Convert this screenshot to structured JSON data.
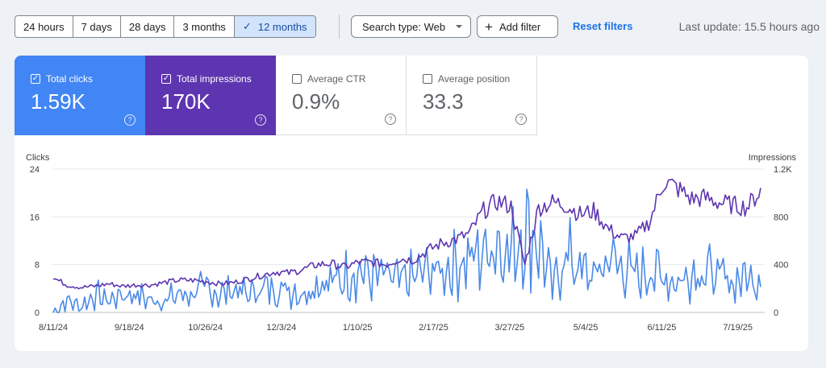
{
  "toolbar": {
    "ranges": [
      "24 hours",
      "7 days",
      "28 days",
      "3 months",
      "12 months"
    ],
    "selected_range": "12 months",
    "search_type": "Search type: Web",
    "add_filter": "Add filter",
    "reset": "Reset filters",
    "last_update": "Last update: 15.5 hours ago"
  },
  "metrics": [
    {
      "label": "Total clicks",
      "value": "1.59K",
      "checked": true,
      "color": "#4285f4"
    },
    {
      "label": "Total impressions",
      "value": "170K",
      "checked": true,
      "color": "#5e35b1"
    },
    {
      "label": "Average CTR",
      "value": "0.9%",
      "checked": false
    },
    {
      "label": "Average position",
      "value": "33.3",
      "checked": false
    }
  ],
  "chart_data": {
    "type": "line",
    "left_axis_label": "Clicks",
    "right_axis_label": "Impressions",
    "left_ticks": [
      0,
      8,
      16,
      24
    ],
    "right_ticks": [
      0,
      400,
      800,
      "1.2K"
    ],
    "left_ylim": [
      0,
      24
    ],
    "right_ylim": [
      0,
      1200
    ],
    "grid": true,
    "x_ticks": [
      "8/11/24",
      "9/18/24",
      "10/26/24",
      "12/3/24",
      "1/10/25",
      "2/17/25",
      "3/27/25",
      "5/4/25",
      "6/11/25",
      "7/19/25"
    ],
    "series": [
      {
        "name": "Clicks",
        "axis": "left",
        "color": "#4a8ae6",
        "anchors_week": [
          0,
          1,
          2,
          3,
          4,
          5,
          6,
          7,
          8,
          9,
          10,
          11,
          12,
          13,
          14,
          15,
          16,
          17,
          18,
          19,
          20,
          21,
          22,
          23,
          24,
          25,
          26,
          27,
          28,
          29,
          30,
          31,
          32,
          33,
          34,
          35,
          36,
          37,
          38,
          39,
          40,
          41,
          42,
          43,
          44,
          45,
          46,
          47,
          48,
          49,
          50,
          51
        ],
        "values": [
          0,
          2,
          1,
          3,
          2,
          3,
          3,
          2,
          2,
          3,
          3,
          4,
          3,
          4,
          3,
          4,
          4,
          4,
          3,
          5,
          5,
          6,
          7,
          6,
          6,
          5,
          6,
          7,
          7,
          8,
          9,
          10,
          12,
          10,
          14,
          12,
          4,
          10,
          7,
          6,
          9,
          8,
          6,
          7,
          6,
          5,
          7,
          7,
          6,
          5,
          6,
          6
        ]
      },
      {
        "name": "Impressions",
        "axis": "right",
        "color": "#5e35b1",
        "anchors_week": [
          0,
          1,
          2,
          3,
          4,
          5,
          6,
          7,
          8,
          9,
          10,
          11,
          12,
          13,
          14,
          15,
          16,
          17,
          18,
          19,
          20,
          21,
          22,
          23,
          24,
          25,
          26,
          27,
          28,
          29,
          30,
          31,
          32,
          33,
          34,
          35,
          36,
          37,
          38,
          39,
          40,
          41,
          42,
          43,
          44,
          45,
          46,
          47,
          48,
          49,
          50,
          51
        ],
        "values": [
          290,
          230,
          210,
          220,
          240,
          220,
          230,
          230,
          250,
          270,
          270,
          260,
          240,
          250,
          280,
          310,
          340,
          330,
          360,
          400,
          410,
          380,
          420,
          420,
          400,
          450,
          440,
          520,
          580,
          610,
          660,
          850,
          930,
          890,
          400,
          880,
          920,
          900,
          820,
          850,
          700,
          620,
          640,
          760,
          1100,
          1040,
          950,
          960,
          920,
          900,
          880,
          1020
        ]
      }
    ]
  }
}
